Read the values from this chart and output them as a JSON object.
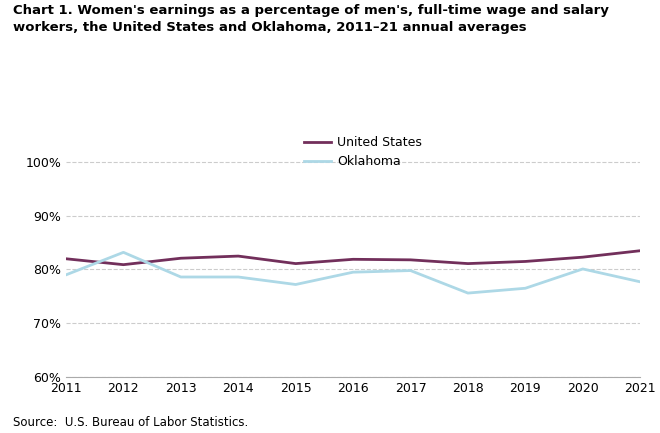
{
  "years": [
    2011,
    2012,
    2013,
    2014,
    2015,
    2016,
    2017,
    2018,
    2019,
    2020,
    2021
  ],
  "us_values": [
    82.0,
    80.9,
    82.1,
    82.5,
    81.1,
    81.9,
    81.8,
    81.1,
    81.5,
    82.3,
    83.5
  ],
  "ok_values": [
    79.0,
    83.2,
    78.6,
    78.6,
    77.2,
    79.5,
    79.8,
    75.6,
    76.5,
    80.1,
    77.7
  ],
  "us_color": "#722F5B",
  "ok_color": "#ADD8E6",
  "us_label": "United States",
  "ok_label": "Oklahoma",
  "title": "Chart 1. Women's earnings as a percentage of men's, full-time wage and salary\nworkers, the United States and Oklahoma, 2011–21 annual averages",
  "source_text": "Source:  U.S. Bureau of Labor Statistics.",
  "ylim": [
    60,
    102
  ],
  "yticks": [
    60,
    70,
    80,
    90,
    100
  ],
  "ytick_labels": [
    "60%",
    "70%",
    "80%",
    "90%",
    "100%"
  ],
  "background_color": "#ffffff",
  "line_width": 2.0,
  "grid_color": "#cccccc",
  "spine_color": "#aaaaaa"
}
